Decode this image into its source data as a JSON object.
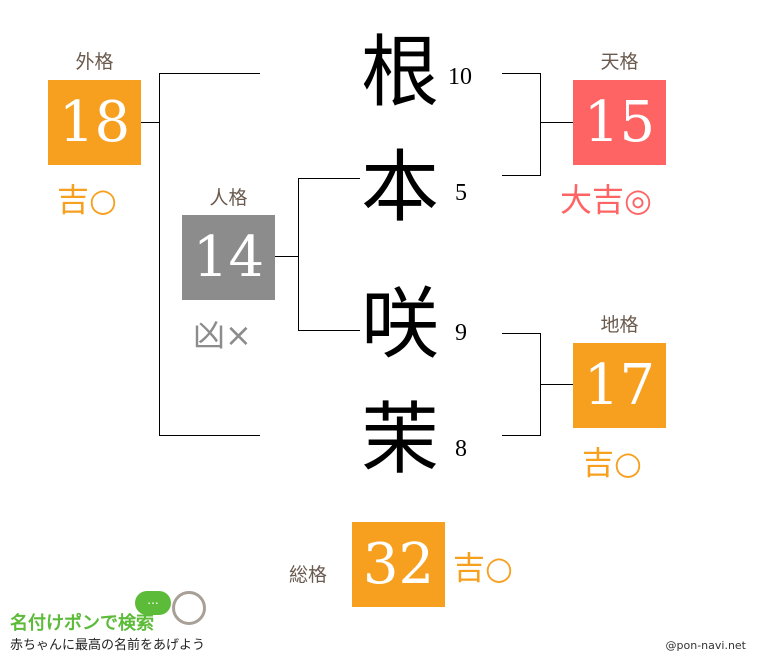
{
  "colors": {
    "good": "#F7A020",
    "great": "#FF6464",
    "bad": "#8C8C8C",
    "label": "#6b5a4e"
  },
  "name": {
    "chars": [
      "根",
      "本",
      "咲",
      "茉"
    ],
    "strokes": [
      "10",
      "5",
      "9",
      "8"
    ]
  },
  "gaikaku": {
    "label": "外格",
    "value": "18",
    "result": "吉○"
  },
  "jinkaku": {
    "label": "人格",
    "value": "14",
    "result": "凶×"
  },
  "tenkaku": {
    "label": "天格",
    "value": "15",
    "result": "大吉◎"
  },
  "chikaku": {
    "label": "地格",
    "value": "17",
    "result": "吉○"
  },
  "soukaku": {
    "label": "総格",
    "value": "32",
    "result": "吉○"
  },
  "footer": {
    "logo": "名付けポンで検索",
    "tagline": "赤ちゃんに最高の名前をあげよう",
    "credit": "@pon-navi.net",
    "bubble": "..."
  }
}
